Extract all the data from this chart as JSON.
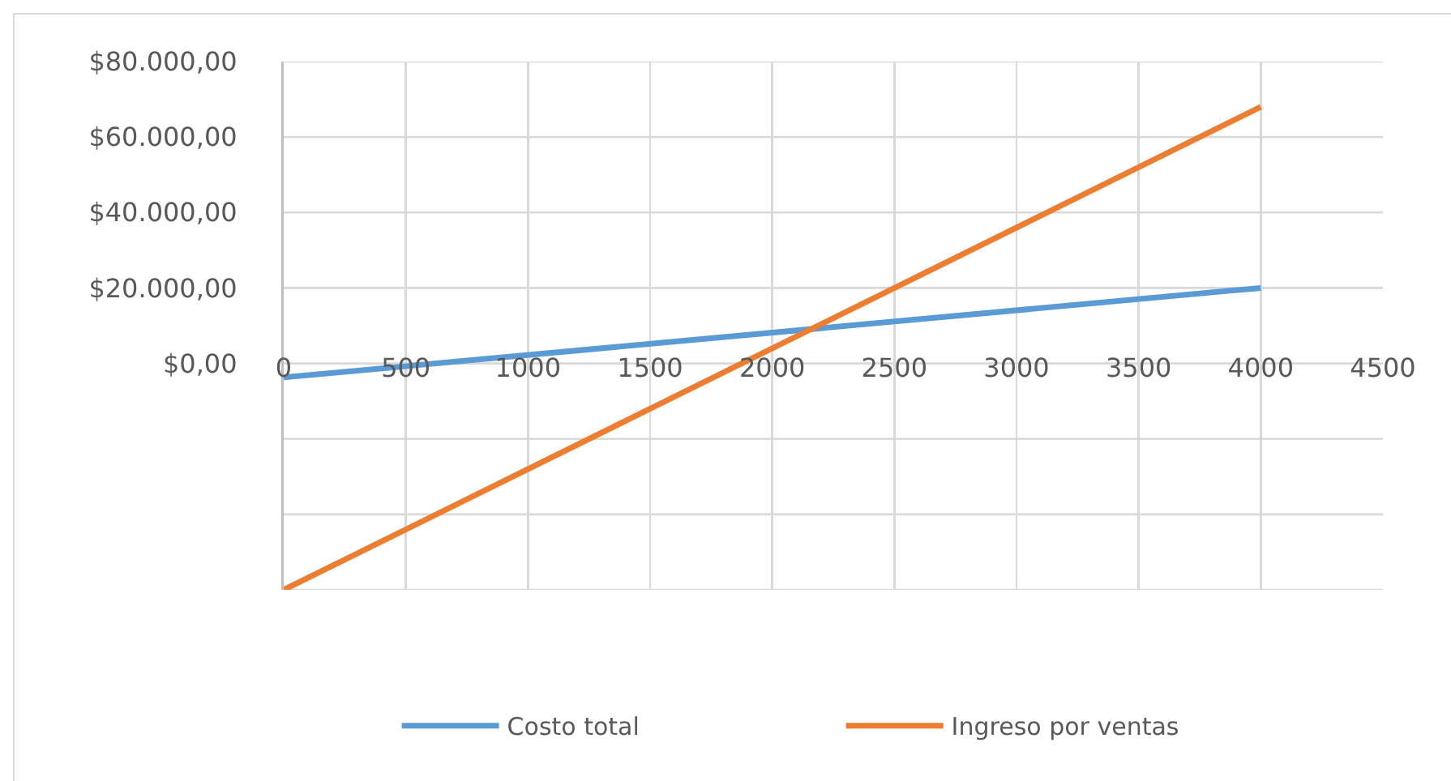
{
  "chart_data": {
    "type": "line",
    "x": [
      0,
      4000
    ],
    "series": [
      {
        "name": "Costo total",
        "color": "#5b9bd5",
        "values": [
          -3700,
          20000
        ]
      },
      {
        "name": "Ingreso por ventas",
        "color": "#ed7d31",
        "values": [
          -60000,
          68000
        ]
      }
    ],
    "xlim": [
      0,
      4500
    ],
    "xticks": [
      0,
      500,
      1000,
      1500,
      2000,
      2500,
      3000,
      3500,
      4000,
      4500
    ],
    "ylim": [
      -60000,
      80000
    ],
    "yticks": [
      {
        "value": -60000,
        "label": null
      },
      {
        "value": -40000,
        "label": null
      },
      {
        "value": -20000,
        "label": null
      },
      {
        "value": 0,
        "label": "$0,00"
      },
      {
        "value": 20000,
        "label": "$20.000,00"
      },
      {
        "value": 40000,
        "label": "$40.000,00"
      },
      {
        "value": 60000,
        "label": "$60.000,00"
      },
      {
        "value": 80000,
        "label": "$80.000,00"
      }
    ],
    "grid": true,
    "legend": "bottom"
  }
}
